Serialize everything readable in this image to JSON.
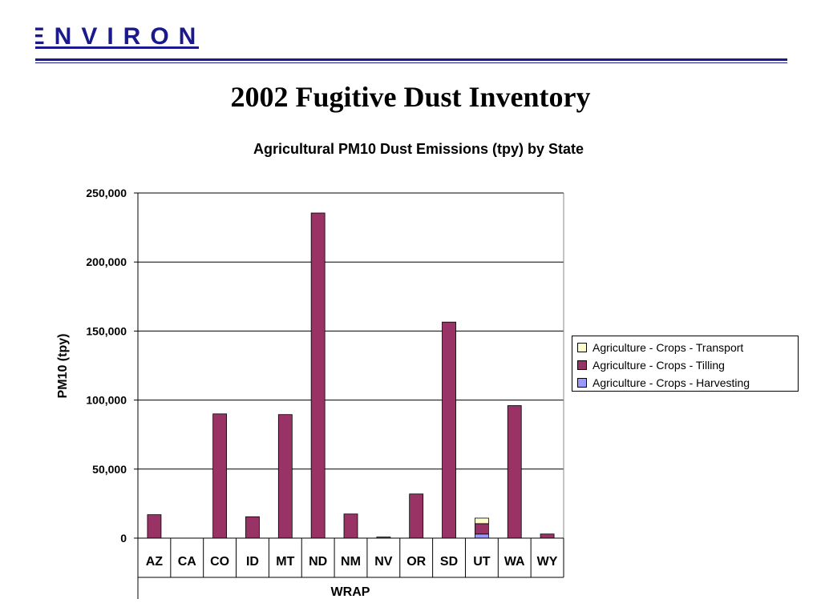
{
  "logo": {
    "text": "ENVIRON"
  },
  "header": {
    "title": "2002 Fugitive Dust Inventory"
  },
  "colors": {
    "brand": "#1a1a8c",
    "transport": "#ffffcc",
    "tilling": "#993366",
    "harvesting": "#9999ff"
  },
  "chart_data": {
    "type": "bar",
    "stacked": true,
    "title": "Agricultural PM10 Dust Emissions (tpy) by State",
    "xlabel": "WRAP",
    "ylabel": "PM10 (tpy)",
    "ylim": [
      0,
      250000
    ],
    "yticks": [
      0,
      50000,
      100000,
      150000,
      200000,
      250000
    ],
    "ytick_labels": [
      "0",
      "50,000",
      "100,000",
      "150,000",
      "200,000",
      "250,000"
    ],
    "grid": true,
    "legend_position": "right",
    "categories": [
      "AZ",
      "CA",
      "CO",
      "ID",
      "MT",
      "ND",
      "NM",
      "NV",
      "OR",
      "SD",
      "UT",
      "WA",
      "WY"
    ],
    "series": [
      {
        "name": "Agriculture - Crops - Harvesting",
        "color": "#9999ff",
        "values": [
          0,
          0,
          0,
          0,
          0,
          0,
          0,
          0,
          0,
          0,
          3000,
          0,
          0
        ]
      },
      {
        "name": "Agriculture - Crops - Tilling",
        "color": "#993366",
        "values": [
          17000,
          0,
          90000,
          15500,
          89500,
          235500,
          17500,
          800,
          32000,
          156500,
          7500,
          96000,
          3000
        ]
      },
      {
        "name": "Agriculture - Crops - Transport",
        "color": "#ffffcc",
        "values": [
          0,
          0,
          0,
          0,
          0,
          0,
          0,
          0,
          0,
          0,
          4000,
          0,
          0
        ]
      }
    ],
    "legend_order": [
      2,
      1,
      0
    ]
  }
}
